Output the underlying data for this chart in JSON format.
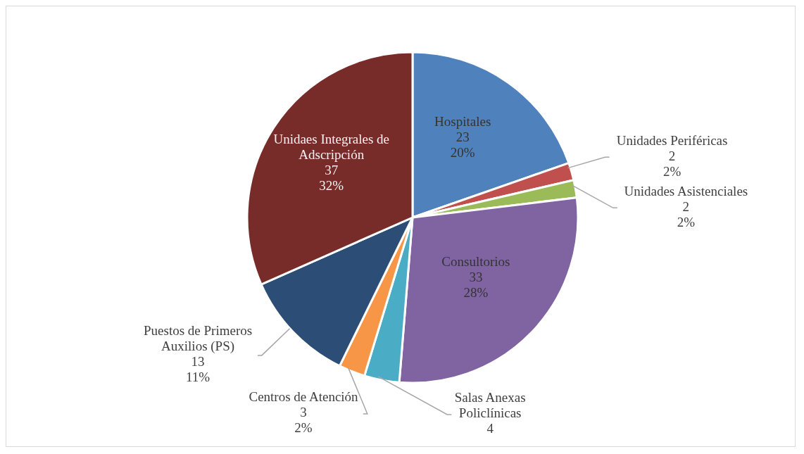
{
  "chart_data": {
    "type": "pie",
    "categories": [
      "Hospitales",
      "Unidades Periféricas",
      "Unidades Asistenciales",
      "Consultorios",
      "Salas Anexas Policlínicas",
      "Centros de Atención",
      "Puestos de Primeros Auxilios (PS)",
      "Unidaes Integrales de Adscripción"
    ],
    "values": [
      23,
      2,
      2,
      33,
      4,
      3,
      13,
      37
    ],
    "colors": [
      "#4f81bd",
      "#c0504d",
      "#9bbb59",
      "#8064a2",
      "#4bacc6",
      "#f79646",
      "#2c4d75",
      "#772c2a"
    ],
    "value_labels": [
      "23\n20%",
      "2\n2%",
      "2\n2%",
      "33\n28%",
      "4",
      "3\n2%",
      "13\n11%",
      "37\n32%"
    ],
    "legend": false
  }
}
